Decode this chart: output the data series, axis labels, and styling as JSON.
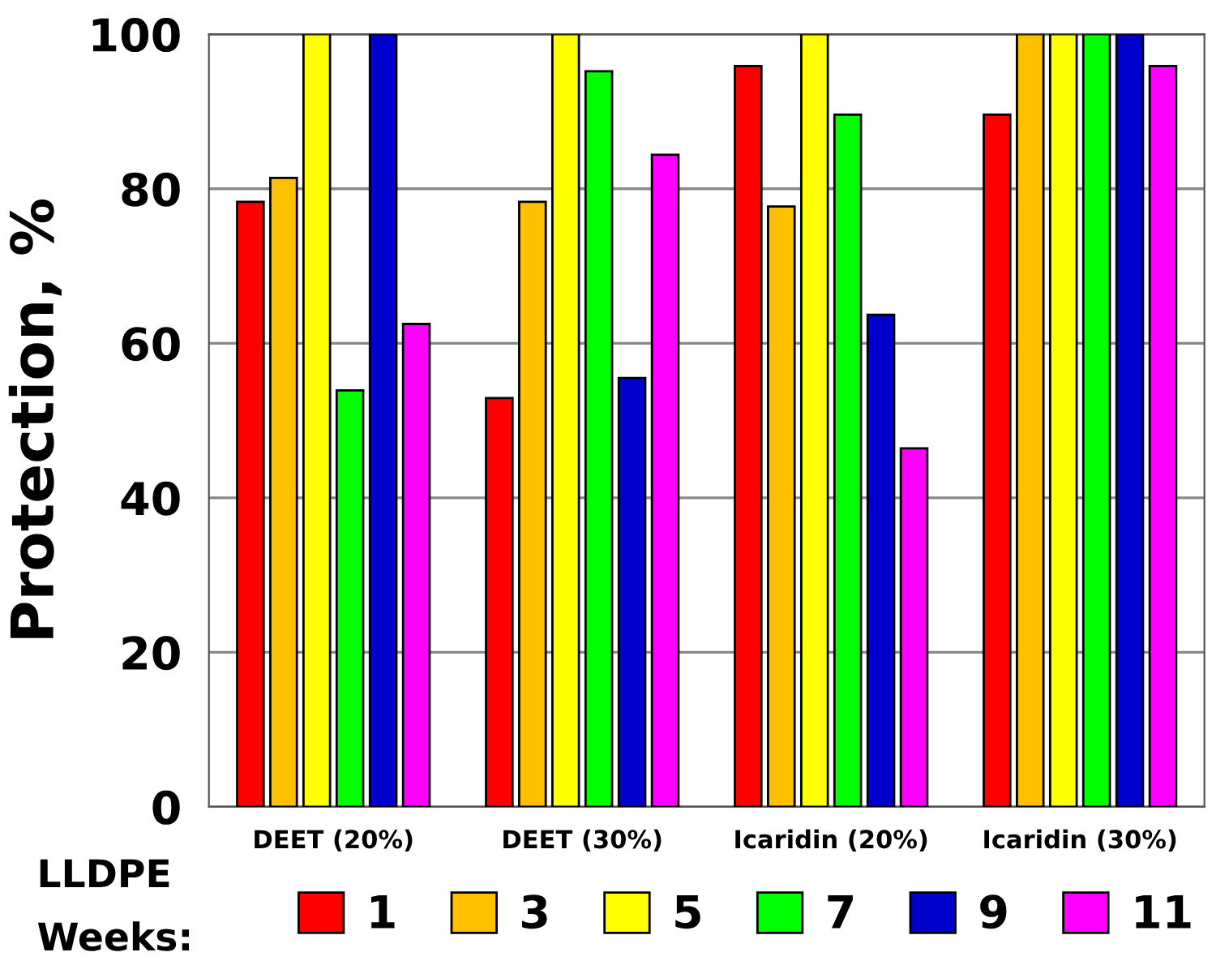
{
  "chart_data": {
    "type": "bar",
    "ylabel": "Protection, %",
    "legend_title": "LLDPE\nWeeks:",
    "categories": [
      "DEET (20%)",
      "DEET (30%)",
      "Icaridin (20%)",
      "Icaridin (30%)"
    ],
    "series": [
      {
        "name": "1",
        "color": "#ff0000",
        "values": [
          78.3,
          52.9,
          95.9,
          89.6
        ]
      },
      {
        "name": "3",
        "color": "#ffc000",
        "values": [
          81.4,
          78.3,
          77.7,
          100
        ]
      },
      {
        "name": "5",
        "color": "#ffff00",
        "values": [
          100,
          100,
          100,
          100
        ]
      },
      {
        "name": "7",
        "color": "#00ff00",
        "values": [
          53.9,
          95.2,
          89.6,
          100
        ]
      },
      {
        "name": "9",
        "color": "#0000cc",
        "values": [
          100,
          55.5,
          63.7,
          100
        ]
      },
      {
        "name": "11",
        "color": "#ff00ff",
        "values": [
          62.5,
          84.4,
          46.4,
          95.9
        ]
      }
    ],
    "ylim": [
      0,
      100
    ],
    "yticks": [
      0,
      20,
      40,
      60,
      80,
      100
    ],
    "grid": "y",
    "legend": "bottom"
  }
}
